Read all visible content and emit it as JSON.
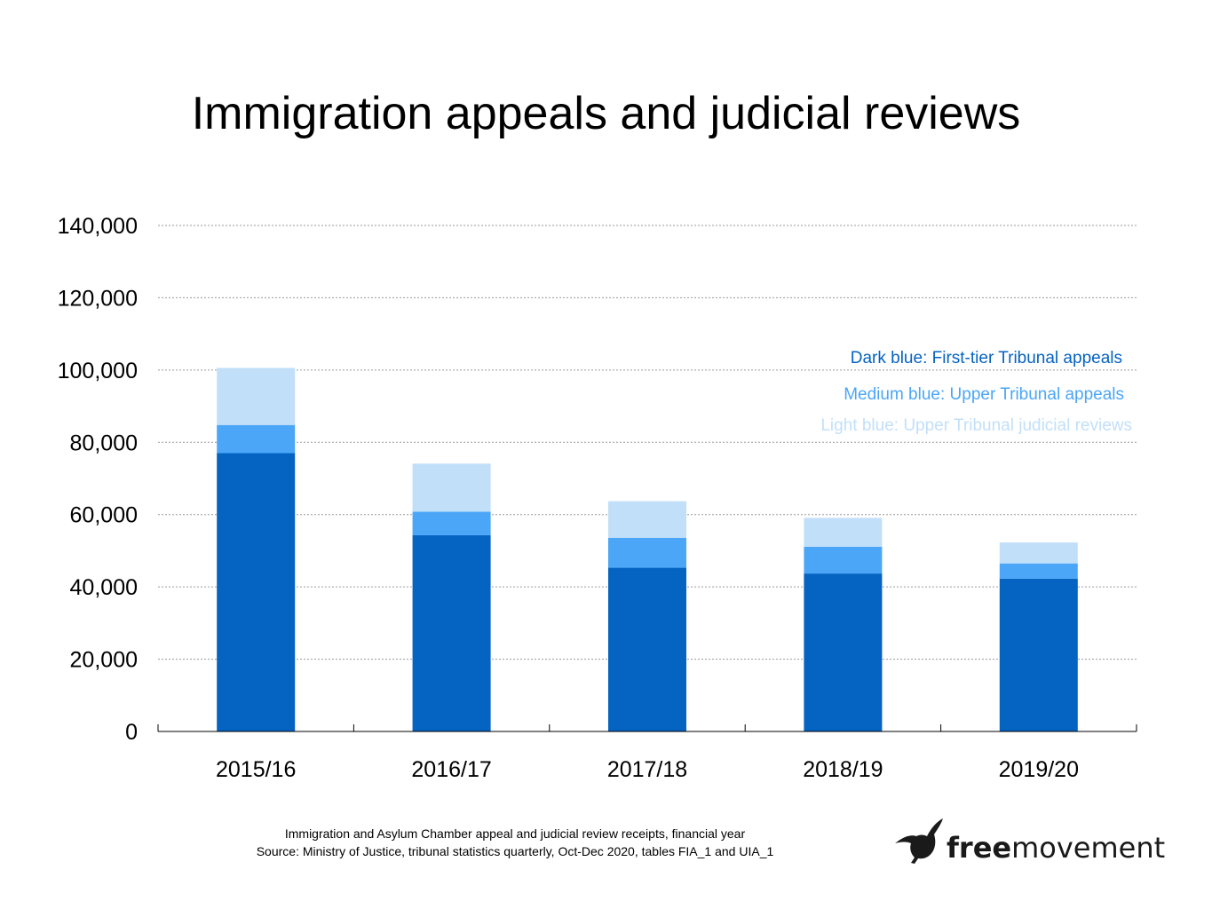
{
  "chart_data": {
    "type": "bar",
    "stacked": true,
    "title": "Immigration appeals and judicial reviews",
    "categories": [
      "2015/16",
      "2016/17",
      "2017/18",
      "2018/19",
      "2019/20"
    ],
    "series": [
      {
        "name": "Dark blue: First-tier Tribunal appeals",
        "color": "#0563C1",
        "values": [
          77000,
          54300,
          45300,
          43700,
          42300
        ]
      },
      {
        "name": "Medium blue: Upper Tribunal appeals",
        "color": "#4BA6F7",
        "values": [
          7800,
          6500,
          8300,
          7400,
          4200
        ]
      },
      {
        "name": "Light blue: Upper Tribunal judicial reviews",
        "color": "#C2DFF9",
        "values": [
          15800,
          13300,
          10100,
          8000,
          5800
        ]
      }
    ],
    "yticks": [
      "0",
      "20,000",
      "40,000",
      "60,000",
      "80,000",
      "100,000",
      "120,000",
      "140,000"
    ],
    "ylim": [
      0,
      140000
    ],
    "xlabel": "",
    "ylabel": "",
    "grid": true,
    "legend_position": "top-right"
  },
  "footer": {
    "line1": "Immigration and Asylum Chamber appeal and judicial review receipts, financial year",
    "line2": "Source: Ministry of Justice, tribunal statistics quarterly, Oct-Dec 2020, tables FIA_1 and UIA_1"
  },
  "logo": {
    "bold": "free",
    "regular": "movement",
    "icon": "bird-icon"
  }
}
